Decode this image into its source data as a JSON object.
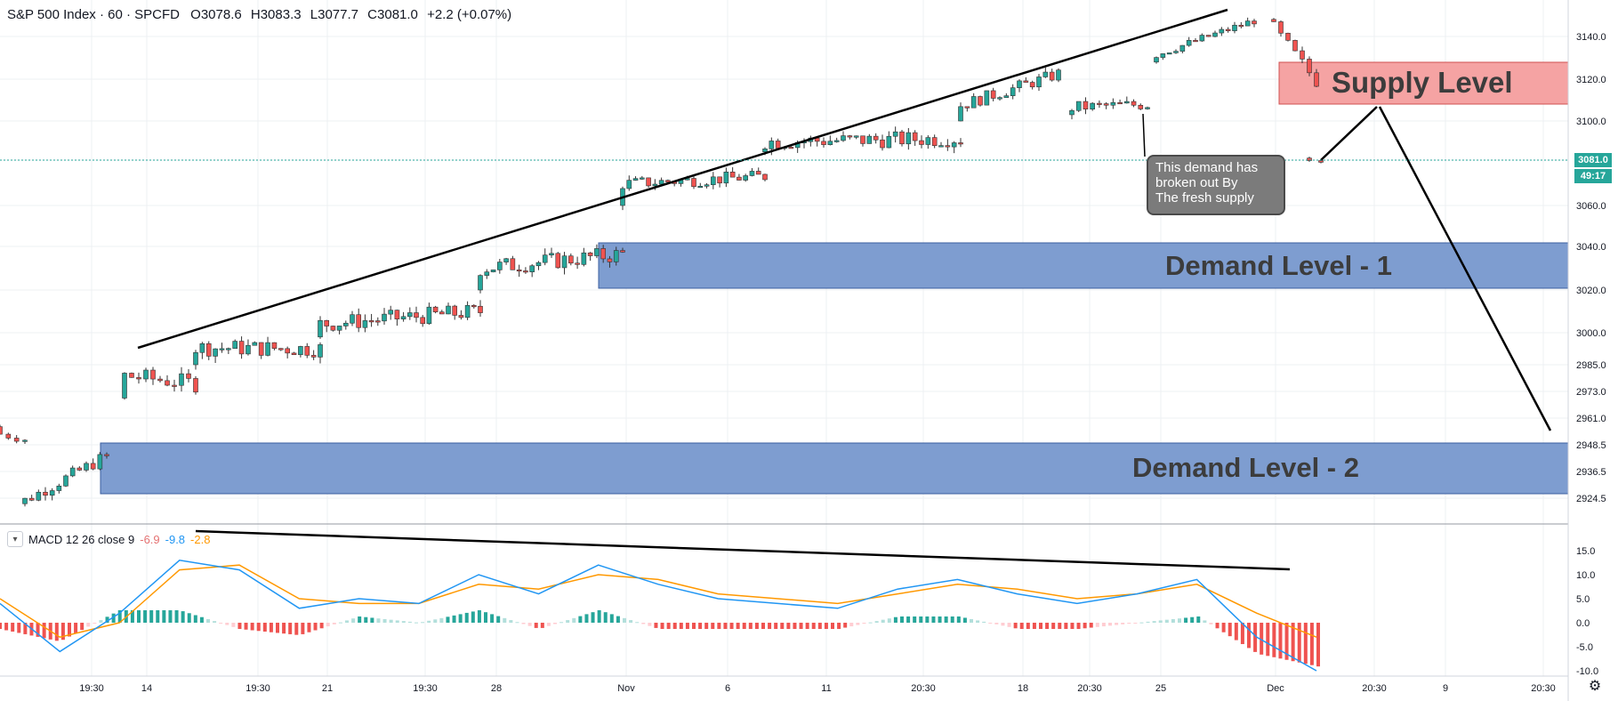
{
  "header": {
    "symbol": "S&P 500 Index · 60 · SPCFD",
    "open": "O3078.6",
    "high": "H3083.3",
    "low": "L3077.7",
    "close": "C3081.0",
    "change": "+2.2 (+0.07%)"
  },
  "macd": {
    "label": "MACD 12 26 close 9",
    "hist_value": "-6.9",
    "macd_value": "-9.8",
    "signal_value": "-2.8",
    "axis_ticks": [
      "15.0",
      "10.0",
      "5.0",
      "0.0",
      "-5.0",
      "-10.0"
    ]
  },
  "price_axis": {
    "ticks": [
      "3140.0",
      "3120.0",
      "3100.0",
      "3081.0",
      "3060.0",
      "3040.0",
      "3020.0",
      "3000.0",
      "2985.0",
      "2973.0",
      "2961.0",
      "2948.5",
      "2936.5",
      "2924.5"
    ],
    "current_price": "3081.0",
    "countdown": "49:17"
  },
  "time_axis": {
    "ticks": [
      "19:30",
      "14",
      "19:30",
      "21",
      "19:30",
      "28",
      "Nov",
      "6",
      "11",
      "20:30",
      "18",
      "20:30",
      "25",
      "Dec",
      "20:30",
      "9",
      "20:30"
    ]
  },
  "zones": {
    "supply": "Supply Level",
    "demand1": "Demand Level - 1",
    "demand2": "Demand Level - 2"
  },
  "callout": {
    "line1": "This demand has",
    "line2": "broken out By",
    "line3": "The fresh supply"
  },
  "colors": {
    "up": "#26a69a",
    "down": "#ef5350",
    "supply_fill": "#f5a3a3",
    "demand_fill": "#7e9dd0",
    "macd_line": "#2196f3",
    "signal_line": "#ff9800"
  },
  "chart_data": {
    "type": "candlestick",
    "segments": [
      {
        "start": [
          2957,
          2950
        ],
        "end": [
          2952,
          2950
        ],
        "noise": 2
      },
      {
        "start": [
          2922,
          2925
        ],
        "end": [
          2945,
          2942
        ],
        "noise": 3
      },
      {
        "start": [
          2970,
          2990
        ],
        "end": [
          2978,
          2975
        ],
        "noise": 4
      },
      {
        "start": [
          2985,
          3001
        ],
        "end": [
          2990,
          2995
        ],
        "noise": 4
      },
      {
        "start": [
          2998,
          3010
        ],
        "end": [
          3005,
          3015
        ],
        "noise": 4
      },
      {
        "start": [
          3020,
          3040
        ],
        "end": [
          3035,
          3038
        ],
        "noise": 4
      },
      {
        "start": [
          3060,
          3080
        ],
        "end": [
          3075,
          3072
        ],
        "noise": 3
      },
      {
        "start": [
          3085,
          3095
        ],
        "end": [
          3088,
          3095
        ],
        "noise": 4
      },
      {
        "start": [
          3100,
          3115
        ],
        "end": [
          3120,
          3125
        ],
        "noise": 3
      },
      {
        "start": [
          3103,
          3110
        ],
        "end": [
          3108,
          3108
        ],
        "noise": 3
      },
      {
        "start": [
          3128,
          3135
        ],
        "end": [
          3145,
          3150
        ],
        "noise": 2
      },
      {
        "start": [
          3148,
          3140
        ],
        "end": [
          3120,
          3118
        ],
        "noise": 3
      },
      {
        "start": [
          3082,
          3081
        ],
        "end": [
          3081,
          3081
        ],
        "noise": 1
      }
    ],
    "macd_series": [
      {
        "name": "MACD",
        "values": [
          4,
          -6,
          2,
          13,
          11,
          3,
          5,
          4,
          10,
          6,
          12,
          8,
          5,
          4,
          3,
          7,
          9,
          6,
          4,
          6,
          9,
          -3,
          -10
        ]
      },
      {
        "name": "Signal",
        "values": [
          5,
          -3,
          0,
          11,
          12,
          5,
          4,
          4,
          8,
          7,
          10,
          9,
          6,
          5,
          4,
          6,
          8,
          7,
          5,
          6,
          8,
          2,
          -3
        ]
      }
    ],
    "histogram_range": [
      -6,
      7
    ]
  }
}
